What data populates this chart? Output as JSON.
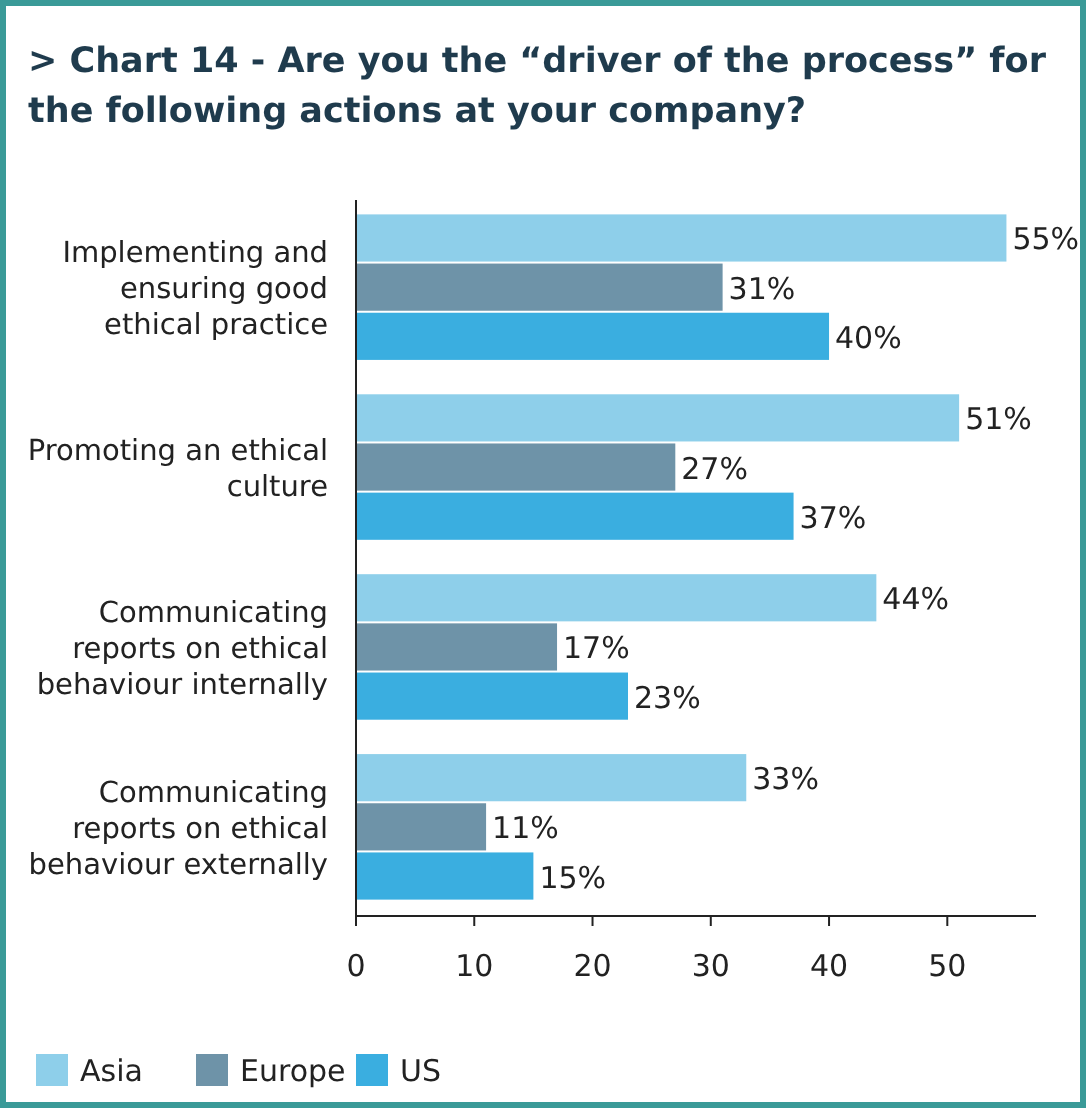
{
  "chart_data": {
    "type": "bar",
    "orientation": "horizontal",
    "title": "> Chart 14 - Are you the “driver of the process” for the following actions at your company?",
    "categories": [
      "Implementing and ensuring good ethical practice",
      "Promoting an ethical culture",
      "Communicating reports on ethical behaviour internally",
      "Communicating reports on ethical behaviour externally"
    ],
    "series": [
      {
        "name": "Asia",
        "color": "#8ecfea",
        "values": [
          55,
          51,
          44,
          33
        ],
        "value_labels": [
          "55%",
          "51%",
          "44%",
          "33%"
        ]
      },
      {
        "name": "Europe",
        "color": "#6e93a8",
        "values": [
          31,
          27,
          17,
          11
        ],
        "value_labels": [
          "31%",
          "27%",
          "17%",
          "11%"
        ]
      },
      {
        "name": "US",
        "color": "#3aaee0",
        "values": [
          40,
          37,
          23,
          15
        ],
        "value_labels": [
          "40%",
          "37%",
          "23%",
          "15%"
        ]
      }
    ],
    "xlim": [
      0,
      57.5
    ],
    "xticks": [
      0,
      10,
      20,
      30,
      40,
      50
    ],
    "grid": false,
    "legend": "bottom left"
  }
}
